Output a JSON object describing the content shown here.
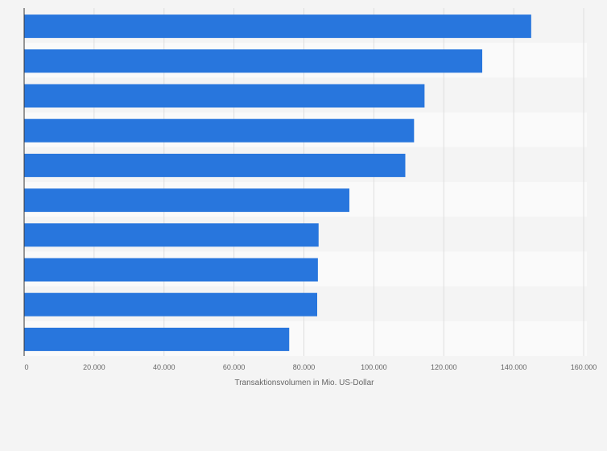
{
  "chart_data": {
    "type": "bar",
    "orientation": "horizontal",
    "title": "",
    "xlabel": "Transaktionsvolumen in Mio. US-Dollar",
    "ylabel": "",
    "xlim": [
      0,
      160000
    ],
    "xticks": [
      0,
      20000,
      40000,
      60000,
      80000,
      100000,
      120000,
      140000,
      160000
    ],
    "xtick_labels": [
      "0",
      "20.000",
      "40.000",
      "60.000",
      "80.000",
      "100.000",
      "120.000",
      "140.000",
      "160.000"
    ],
    "categories": [
      "",
      "",
      "",
      "",
      "",
      "",
      "",
      "",
      "",
      ""
    ],
    "values": [
      145000,
      131000,
      114500,
      111500,
      109000,
      93000,
      84200,
      84000,
      83800,
      75800
    ],
    "grid": true,
    "bar_color": "#2876dd",
    "background_color": "#f4f4f4",
    "band_colors": [
      "#f4f4f4",
      "#fafafa"
    ],
    "grid_color": "#dedede",
    "axis_color": "#333333"
  }
}
